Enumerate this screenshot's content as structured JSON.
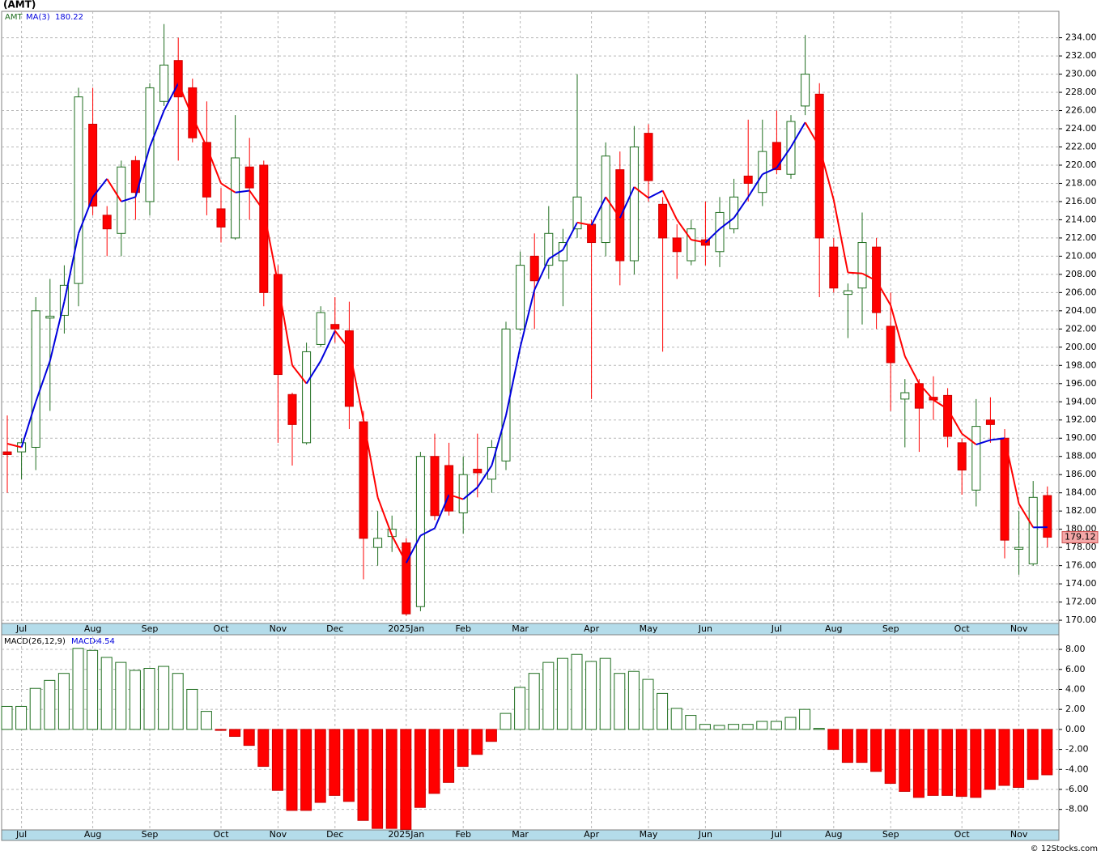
{
  "chart_data": [
    {
      "type": "candlestick",
      "title": "(AMT)",
      "symbol": "AMT",
      "categories": [
        null,
        "Jul",
        null,
        null,
        null,
        null,
        "Aug",
        null,
        null,
        null,
        "Sep",
        null,
        null,
        null,
        null,
        "Oct",
        null,
        null,
        null,
        "Nov",
        null,
        null,
        null,
        "Dec",
        null,
        null,
        null,
        null,
        "2025Jan",
        null,
        null,
        null,
        "Feb",
        null,
        null,
        null,
        "Mar",
        null,
        null,
        null,
        null,
        "Apr",
        null,
        null,
        null,
        "May",
        null,
        null,
        null,
        "Jun",
        null,
        null,
        null,
        null,
        "Jul",
        null,
        null,
        null,
        "Aug",
        null,
        null,
        null,
        "Sep",
        null,
        null,
        null,
        null,
        "Oct",
        null,
        null,
        null,
        "Nov",
        null,
        null
      ],
      "open": [
        188.5,
        188.5,
        189,
        203.2,
        203.5,
        207,
        224.5,
        214.5,
        212.5,
        220.5,
        216,
        227,
        231.5,
        228.5,
        222.5,
        215.2,
        212,
        219.8,
        220,
        208,
        194.8,
        189.5,
        200.3,
        202.5,
        201.8,
        191.8,
        178,
        179.2,
        178.5,
        171.5,
        188,
        187,
        181.8,
        186.6,
        185.5,
        187.5,
        202,
        210,
        209,
        209.5,
        213,
        213.5,
        211.5,
        219.5,
        209.5,
        223.5,
        215.7,
        212,
        209.5,
        211.8,
        210.5,
        213,
        218.8,
        217,
        222.5,
        219,
        226.5,
        227.8,
        211,
        205.8,
        206.5,
        211,
        202.3,
        194.3,
        196,
        194.5,
        194.7,
        189.5,
        184.3,
        192,
        190,
        177.8,
        176.2,
        183.7
      ],
      "high": [
        192.5,
        190,
        205.5,
        207.5,
        209,
        228.5,
        228.5,
        215.5,
        220.5,
        221,
        229,
        235.5,
        234,
        229.5,
        227,
        217.5,
        225.5,
        223,
        220.5,
        209,
        195,
        200.5,
        204.5,
        205.5,
        205,
        193,
        182,
        181.5,
        179,
        188.5,
        190.5,
        189.5,
        188,
        190.5,
        189.8,
        202.8,
        210.5,
        212.5,
        215.5,
        213,
        230,
        214,
        222.5,
        221.5,
        224.3,
        224.5,
        216.5,
        213.5,
        214,
        216,
        216.5,
        218.5,
        225,
        225,
        226,
        225.5,
        234.3,
        229,
        212,
        207,
        214.8,
        212,
        206,
        196.5,
        196.5,
        196.8,
        195.5,
        190,
        194.3,
        194.5,
        191,
        182,
        185.3,
        184.7
      ],
      "low": [
        184,
        185.5,
        186.5,
        193,
        201.5,
        204.5,
        214.5,
        210,
        210,
        214,
        214.5,
        226.5,
        220.5,
        222.5,
        214.5,
        211.5,
        211.8,
        214,
        204.5,
        189.5,
        187,
        189.3,
        200,
        200.5,
        191,
        174.5,
        176,
        177.5,
        170.5,
        171,
        181,
        181.5,
        179.5,
        183.5,
        184,
        186.5,
        201.8,
        202,
        207.5,
        204.5,
        212,
        194.3,
        210,
        206.8,
        208,
        216,
        199.5,
        207.5,
        209,
        209,
        208.8,
        212.5,
        216,
        215.5,
        219,
        218.5,
        225.5,
        205.5,
        206,
        201,
        202.5,
        202,
        193,
        189,
        188.5,
        192,
        189,
        183.8,
        182.5,
        189.5,
        176.8,
        175,
        176,
        178
      ],
      "close": [
        188.2,
        189.5,
        204,
        203.4,
        206.8,
        227.5,
        215.5,
        213,
        219.8,
        217,
        228.5,
        231,
        227.5,
        223,
        216.5,
        213.2,
        220.8,
        217.5,
        206,
        197,
        191.5,
        199.5,
        203.8,
        202,
        193.5,
        179,
        179,
        180,
        170.7,
        188,
        181.5,
        182,
        186,
        186.2,
        189,
        202,
        209,
        207.3,
        212.5,
        211.5,
        216.5,
        211.5,
        221,
        209.5,
        222,
        218.3,
        212,
        210.5,
        213,
        211.2,
        214.8,
        216.5,
        218,
        221.5,
        219.5,
        224.8,
        230,
        212,
        206.5,
        206.2,
        211.5,
        203.8,
        198.3,
        195,
        193.3,
        194.2,
        190.2,
        186.5,
        191.3,
        191.5,
        178.8,
        178,
        183.5,
        179.12
      ],
      "up_color": "#1f6e1f",
      "down_color": "#ff0000",
      "ma": {
        "name": "MA(3)",
        "up_color": "#0000dd",
        "down_color": "#ff0000",
        "values": [
          189.4,
          189,
          194,
          198.5,
          205,
          212.5,
          216.5,
          218.5,
          216,
          216.5,
          222,
          226,
          229,
          225.3,
          222,
          218,
          217,
          217.2,
          215,
          207,
          198,
          196,
          198.5,
          201.8,
          199.8,
          192,
          183.5,
          179.3,
          176.3,
          179.3,
          180.1,
          183.8,
          183.3,
          184.6,
          187,
          192.5,
          200,
          206.3,
          209.7,
          210.7,
          213.7,
          213.4,
          216.5,
          214.2,
          217.6,
          216.4,
          217.2,
          214,
          211.8,
          211.5,
          213,
          214.2,
          216.5,
          219,
          219.7,
          222,
          224.7,
          222,
          216.2,
          208.2,
          208.1,
          207.3,
          204.6,
          199,
          196,
          194.2,
          193.2,
          190.5,
          189.3,
          189.8,
          190,
          182.8,
          180.2,
          180.22
        ]
      },
      "ylim": [
        169.65,
        236.9
      ],
      "yticks": [
        {
          "value": 170,
          "label": "170.00"
        },
        {
          "value": 172,
          "label": "172.00"
        },
        {
          "value": 174,
          "label": "174.00"
        },
        {
          "value": 176,
          "label": "176.00"
        },
        {
          "value": 178,
          "label": "178.00"
        },
        {
          "value": 180,
          "label": "180.00"
        },
        {
          "value": 182,
          "label": "182.00"
        },
        {
          "value": 184,
          "label": "184.00"
        },
        {
          "value": 186,
          "label": "186.00"
        },
        {
          "value": 188,
          "label": "188.00"
        },
        {
          "value": 190,
          "label": "190.00"
        },
        {
          "value": 192,
          "label": "192.00"
        },
        {
          "value": 194,
          "label": "194.00"
        },
        {
          "value": 196,
          "label": "196.00"
        },
        {
          "value": 198,
          "label": "198.00"
        },
        {
          "value": 200,
          "label": "200.00"
        },
        {
          "value": 202,
          "label": "202.00"
        },
        {
          "value": 204,
          "label": "204.00"
        },
        {
          "value": 206,
          "label": "206.00"
        },
        {
          "value": 208,
          "label": "208.00"
        },
        {
          "value": 210,
          "label": "210.00"
        },
        {
          "value": 212,
          "label": "212.00"
        },
        {
          "value": 214,
          "label": "214.00"
        },
        {
          "value": 216,
          "label": "216.00"
        },
        {
          "value": 218,
          "label": "218.00"
        },
        {
          "value": 220,
          "label": "220.00"
        },
        {
          "value": 222,
          "label": "222.00"
        },
        {
          "value": 224,
          "label": "224.00"
        },
        {
          "value": 226,
          "label": "226.00"
        },
        {
          "value": 228,
          "label": "228.00"
        },
        {
          "value": 230,
          "label": "230.00"
        },
        {
          "value": 232,
          "label": "232.00"
        },
        {
          "value": 234,
          "label": "234.00"
        }
      ],
      "grid": true
    },
    {
      "type": "bar",
      "name": "MACD(26,12,9)",
      "readout": "MACD:",
      "categories": [
        null,
        "Jul",
        null,
        null,
        null,
        null,
        "Aug",
        null,
        null,
        null,
        "Sep",
        null,
        null,
        null,
        null,
        "Oct",
        null,
        null,
        null,
        "Nov",
        null,
        null,
        null,
        "Dec",
        null,
        null,
        null,
        null,
        "2025Jan",
        null,
        null,
        null,
        "Feb",
        null,
        null,
        null,
        "Mar",
        null,
        null,
        null,
        null,
        "Apr",
        null,
        null,
        null,
        "May",
        null,
        null,
        null,
        "Jun",
        null,
        null,
        null,
        null,
        "Jul",
        null,
        null,
        null,
        "Aug",
        null,
        null,
        null,
        "Sep",
        null,
        null,
        null,
        null,
        "Oct",
        null,
        null,
        null,
        "Nov",
        null,
        null
      ],
      "values": [
        2.3,
        2.3,
        4.1,
        4.9,
        5.6,
        8.1,
        7.9,
        7.2,
        6.7,
        5.9,
        6.1,
        6.3,
        5.6,
        4.0,
        1.8,
        -0.1,
        -0.7,
        -1.6,
        -3.7,
        -6.1,
        -8.1,
        -8.1,
        -7.3,
        -6.6,
        -7.2,
        -9.1,
        -9.9,
        -9.9,
        -10,
        -7.8,
        -6.4,
        -5.3,
        -3.7,
        -2.5,
        -1.2,
        1.6,
        4.2,
        5.6,
        6.7,
        7.1,
        7.5,
        6.8,
        7.1,
        5.6,
        5.8,
        5.0,
        3.6,
        2.1,
        1.4,
        0.5,
        0.4,
        0.5,
        0.5,
        0.8,
        0.8,
        1.2,
        2.0,
        0.1,
        -2.0,
        -3.3,
        -3.3,
        -4.2,
        -5.4,
        -6.2,
        -6.8,
        -6.6,
        -6.6,
        -6.7,
        -6.8,
        -6.0,
        -5.6,
        -5.8,
        -5.0,
        -4.54
      ],
      "up_color": "#1f6e1f",
      "down_color": "#ff0000",
      "ylim": [
        -10.05,
        9.3
      ],
      "yticks": [
        {
          "value": 8,
          "label": "8.00"
        },
        {
          "value": 6,
          "label": "6.00"
        },
        {
          "value": 4,
          "label": "4.00"
        },
        {
          "value": 2,
          "label": "2.00"
        },
        {
          "value": 0,
          "label": "0.00"
        },
        {
          "value": -2,
          "label": "-2.00"
        },
        {
          "value": -4,
          "label": "-4.00"
        },
        {
          "value": -6,
          "label": "-6.00"
        },
        {
          "value": -8,
          "label": "-8.00"
        }
      ],
      "grid": true
    }
  ],
  "footer": "© 12Stocks.com"
}
